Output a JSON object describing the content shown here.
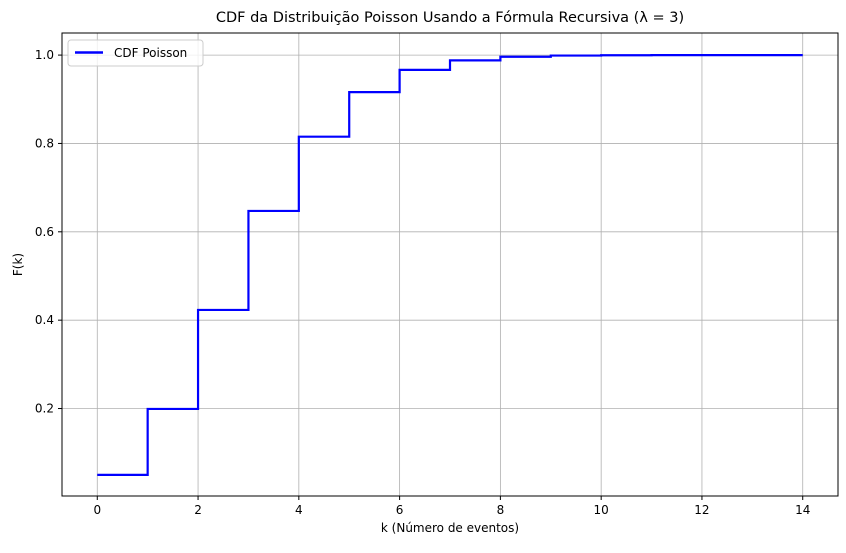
{
  "chart_data": {
    "type": "line",
    "step": "post",
    "title": "CDF da Distribuição Poisson Usando a Fórmula Recursiva (λ = 3)",
    "xlabel": "k (Número de eventos)",
    "ylabel": "F(k)",
    "xlim": [
      -0.7,
      14.7
    ],
    "ylim": [
      0.002,
      1.05
    ],
    "xticks": [
      0,
      2,
      4,
      6,
      8,
      10,
      12,
      14
    ],
    "xtick_labels": [
      "0",
      "2",
      "4",
      "6",
      "8",
      "10",
      "12",
      "14"
    ],
    "yticks": [
      0.2,
      0.4,
      0.6,
      0.8,
      1.0
    ],
    "ytick_labels": [
      "0.2",
      "0.4",
      "0.6",
      "0.8",
      "1.0"
    ],
    "grid": true,
    "legend_position": "top-left",
    "series": [
      {
        "name": "CDF Poisson",
        "color": "#0000ff",
        "x": [
          0,
          1,
          2,
          3,
          4,
          5,
          6,
          7,
          8,
          9,
          10,
          11,
          12,
          13,
          14
        ],
        "y": [
          0.0498,
          0.1991,
          0.4232,
          0.6472,
          0.8153,
          0.9161,
          0.9665,
          0.9881,
          0.9962,
          0.9989,
          0.9997,
          0.9999,
          1.0,
          1.0,
          1.0
        ]
      }
    ]
  }
}
